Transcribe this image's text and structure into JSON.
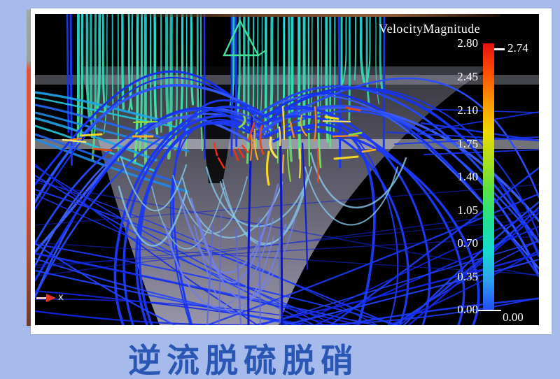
{
  "page": {
    "background_color": "#a7baec",
    "caption": "逆流脱硫脱硝",
    "caption_color": "#2b57b4"
  },
  "viewer": {
    "background_color": "#000000",
    "axis_indicator": {
      "label": "x"
    }
  },
  "chart_data": {
    "type": "heatmap",
    "title": "VelocityMagnitude",
    "subtitle": "",
    "legend": {
      "title": "VelocityMagnitude",
      "position": "right",
      "range": [
        0.0,
        2.8
      ],
      "ticks": [
        "2.80",
        "2.45",
        "2.10",
        "1.75",
        "1.40",
        "1.05",
        "0.70",
        "0.35",
        "0.00"
      ],
      "max_value_label": "2.74",
      "min_value_label": "0.00",
      "colormap_bottom_to_top": [
        "#1e4bf5",
        "#2f9cf0",
        "#18d8d0",
        "#20e094",
        "#52e248",
        "#a8e01e",
        "#f0d800",
        "#ff9800",
        "#ff5000",
        "#e81010"
      ]
    }
  }
}
